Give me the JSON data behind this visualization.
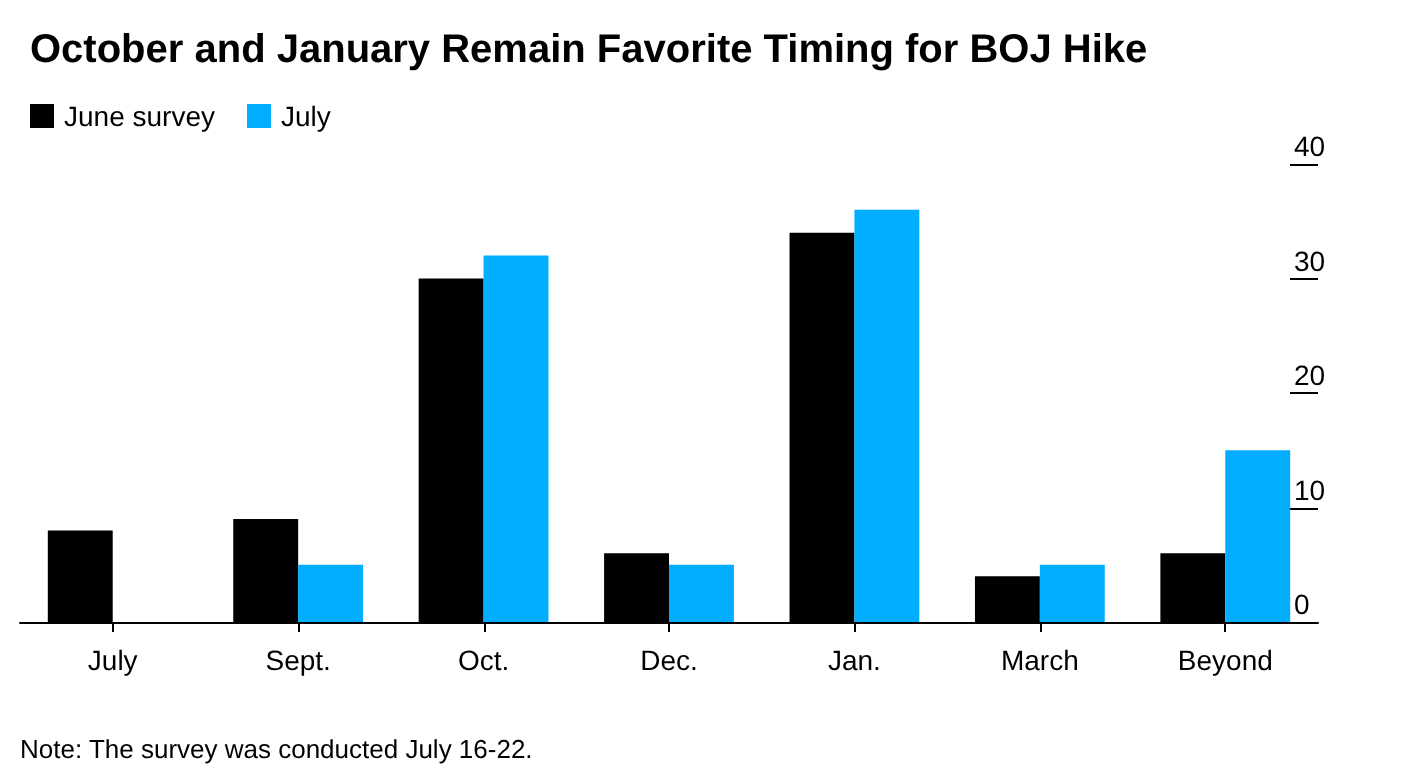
{
  "chart_data": {
    "type": "bar",
    "title": "October and January Remain Favorite Timing for BOJ Hike",
    "categories": [
      "July",
      "Sept.",
      "Oct.",
      "Dec.",
      "Jan.",
      "March",
      "Beyond"
    ],
    "series": [
      {
        "name": "June survey",
        "color": "#000000",
        "values": [
          8,
          9,
          30,
          6,
          34,
          4,
          6
        ]
      },
      {
        "name": "July",
        "color": "#00adff",
        "values": [
          0,
          5,
          32,
          5,
          36,
          5,
          15
        ]
      }
    ],
    "ylim": [
      0,
      40
    ],
    "yticks": [
      0,
      10,
      20,
      30,
      40
    ],
    "grid": false,
    "legend": "top left",
    "annotations": [
      "Note: The survey was conducted July 16-22."
    ]
  }
}
